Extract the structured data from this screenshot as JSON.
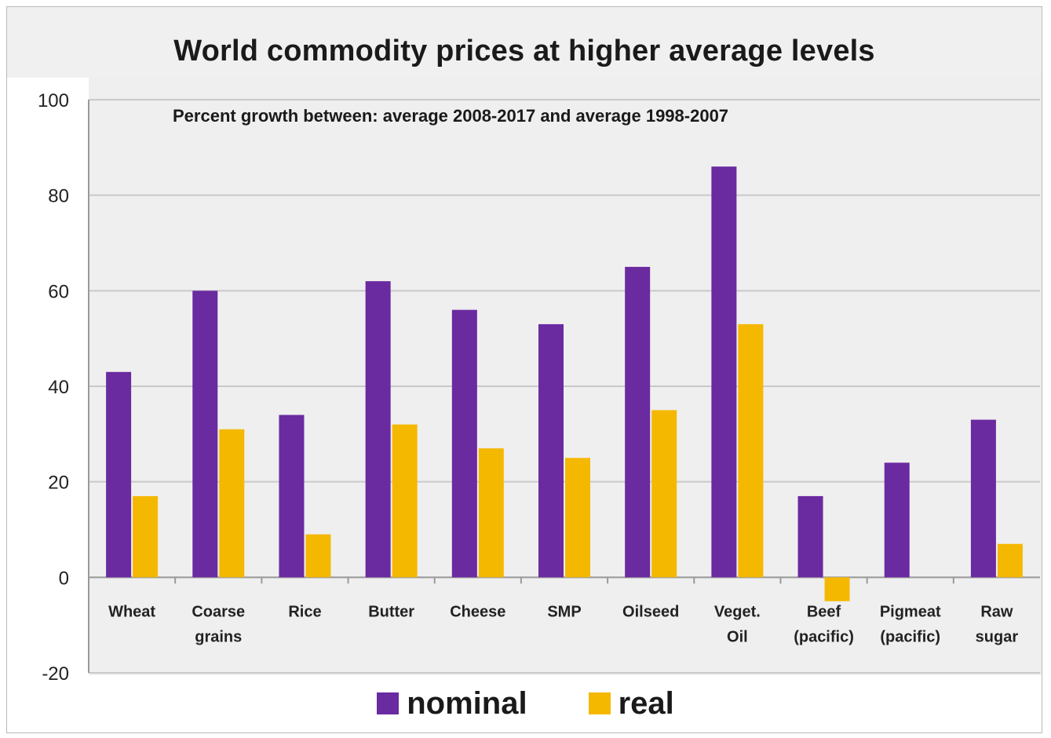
{
  "chart_data": {
    "type": "bar",
    "title": "World commodity prices at higher average levels",
    "subtitle": "Percent growth between: average 2008-2017 and average 1998-2007",
    "categories": [
      [
        "Wheat"
      ],
      [
        "Coarse",
        "grains"
      ],
      [
        "Rice"
      ],
      [
        "Butter"
      ],
      [
        "Cheese"
      ],
      [
        "SMP"
      ],
      [
        "Oilseed"
      ],
      [
        "Veget.",
        "Oil"
      ],
      [
        "Beef",
        "(pacific)"
      ],
      [
        "Pigmeat",
        "(pacific)"
      ],
      [
        "Raw",
        "sugar"
      ]
    ],
    "series": [
      {
        "name": "nominal",
        "color": "#6a2aa0",
        "values": [
          43,
          60,
          34,
          62,
          56,
          53,
          65,
          86,
          17,
          24,
          33
        ]
      },
      {
        "name": "real",
        "color": "#f5b800",
        "values": [
          17,
          31,
          9,
          32,
          27,
          25,
          35,
          53,
          -5,
          null,
          7
        ]
      }
    ],
    "ylim": [
      -20,
      100
    ],
    "yticks": [
      -20,
      0,
      20,
      40,
      60,
      80,
      100
    ],
    "grid": true,
    "legend_position": "bottom"
  }
}
